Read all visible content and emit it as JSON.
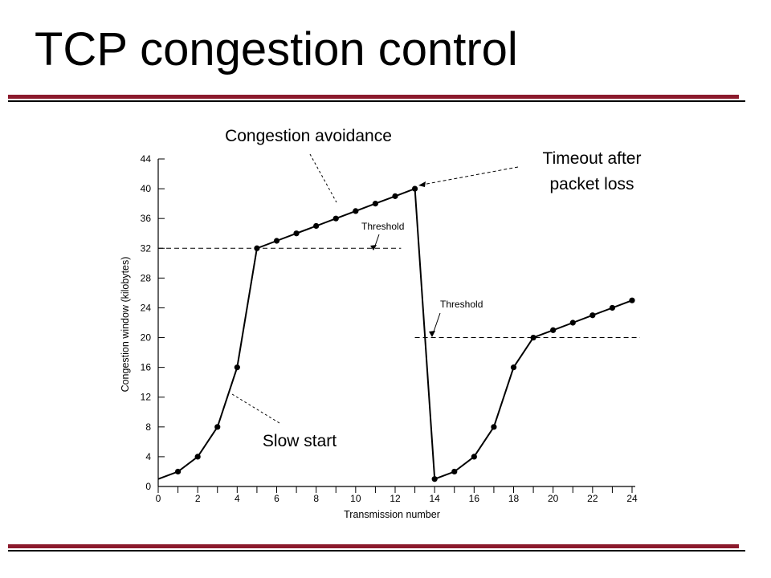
{
  "slide": {
    "title": "TCP congestion control",
    "accent_color": "#8b1a2c"
  },
  "chart_data": {
    "type": "line",
    "xlabel": "Transmission number",
    "ylabel": "Congestion window (kilobytes)",
    "xlim": [
      0,
      24
    ],
    "ylim": [
      0,
      44
    ],
    "x_ticks_labeled": [
      0,
      2,
      4,
      6,
      8,
      10,
      12,
      14,
      16,
      18,
      20,
      22,
      24
    ],
    "y_ticks": [
      0,
      4,
      8,
      12,
      16,
      20,
      24,
      28,
      32,
      36,
      40,
      44
    ],
    "grid": false,
    "series": [
      {
        "points": [
          [
            0,
            1
          ],
          [
            1,
            2
          ],
          [
            2,
            4
          ],
          [
            3,
            8
          ],
          [
            4,
            16
          ],
          [
            5,
            32
          ],
          [
            6,
            33
          ],
          [
            7,
            34
          ],
          [
            8,
            35
          ],
          [
            9,
            36
          ],
          [
            10,
            37
          ],
          [
            11,
            38
          ],
          [
            12,
            39
          ],
          [
            13,
            40
          ],
          [
            14,
            1
          ],
          [
            15,
            2
          ],
          [
            16,
            4
          ],
          [
            17,
            8
          ],
          [
            18,
            16
          ],
          [
            19,
            20
          ],
          [
            20,
            21
          ],
          [
            21,
            22
          ],
          [
            22,
            23
          ],
          [
            23,
            24
          ],
          [
            24,
            25
          ]
        ]
      }
    ],
    "thresholds": [
      {
        "label": "Threshold",
        "y": 32,
        "x_start": 0,
        "x_end": 12.3
      },
      {
        "label": "Threshold",
        "y": 20,
        "x_start": 13,
        "x_end": 24.4
      }
    ],
    "annotations": [
      {
        "text": "Congestion avoidance"
      },
      {
        "text": "Timeout after packet loss",
        "lines": [
          "Timeout after",
          "packet loss"
        ]
      },
      {
        "text": "Slow start"
      }
    ]
  }
}
